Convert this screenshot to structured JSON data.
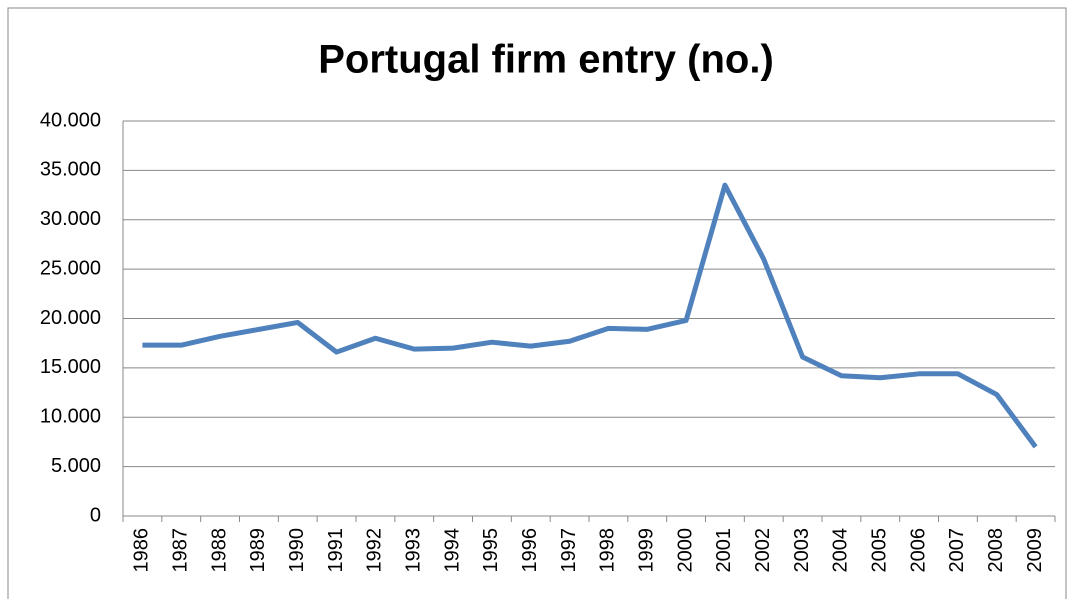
{
  "chart_data": {
    "type": "line",
    "title": "Portugal firm entry (no.)",
    "categories": [
      "1986",
      "1987",
      "1988",
      "1989",
      "1990",
      "1991",
      "1992",
      "1993",
      "1994",
      "1995",
      "1996",
      "1997",
      "1998",
      "1999",
      "2000",
      "2001",
      "2002",
      "2003",
      "2004",
      "2005",
      "2006",
      "2007",
      "2008",
      "2009"
    ],
    "series": [
      {
        "name": "Portugal firm entry",
        "color": "#4f81bd",
        "values": [
          17300,
          17300,
          18200,
          18900,
          19600,
          16600,
          18000,
          16900,
          17000,
          17600,
          17200,
          17700,
          19000,
          18900,
          19800,
          33500,
          26000,
          16100,
          14200,
          14000,
          14400,
          14400,
          12300,
          7000
        ]
      }
    ],
    "ylim": [
      0,
      40000
    ],
    "yticks": [
      0,
      {
        "value": 5000,
        "label": "5.000"
      },
      {
        "value": 10000,
        "label": "10.000"
      },
      {
        "value": 15000,
        "label": "15.000"
      },
      {
        "value": 20000,
        "label": "20.000"
      },
      {
        "value": 25000,
        "label": "25.000"
      },
      {
        "value": 30000,
        "label": "30.000"
      },
      {
        "value": 35000,
        "label": "35.000"
      },
      {
        "value": 40000,
        "label": "40.000"
      }
    ],
    "grid": true
  }
}
